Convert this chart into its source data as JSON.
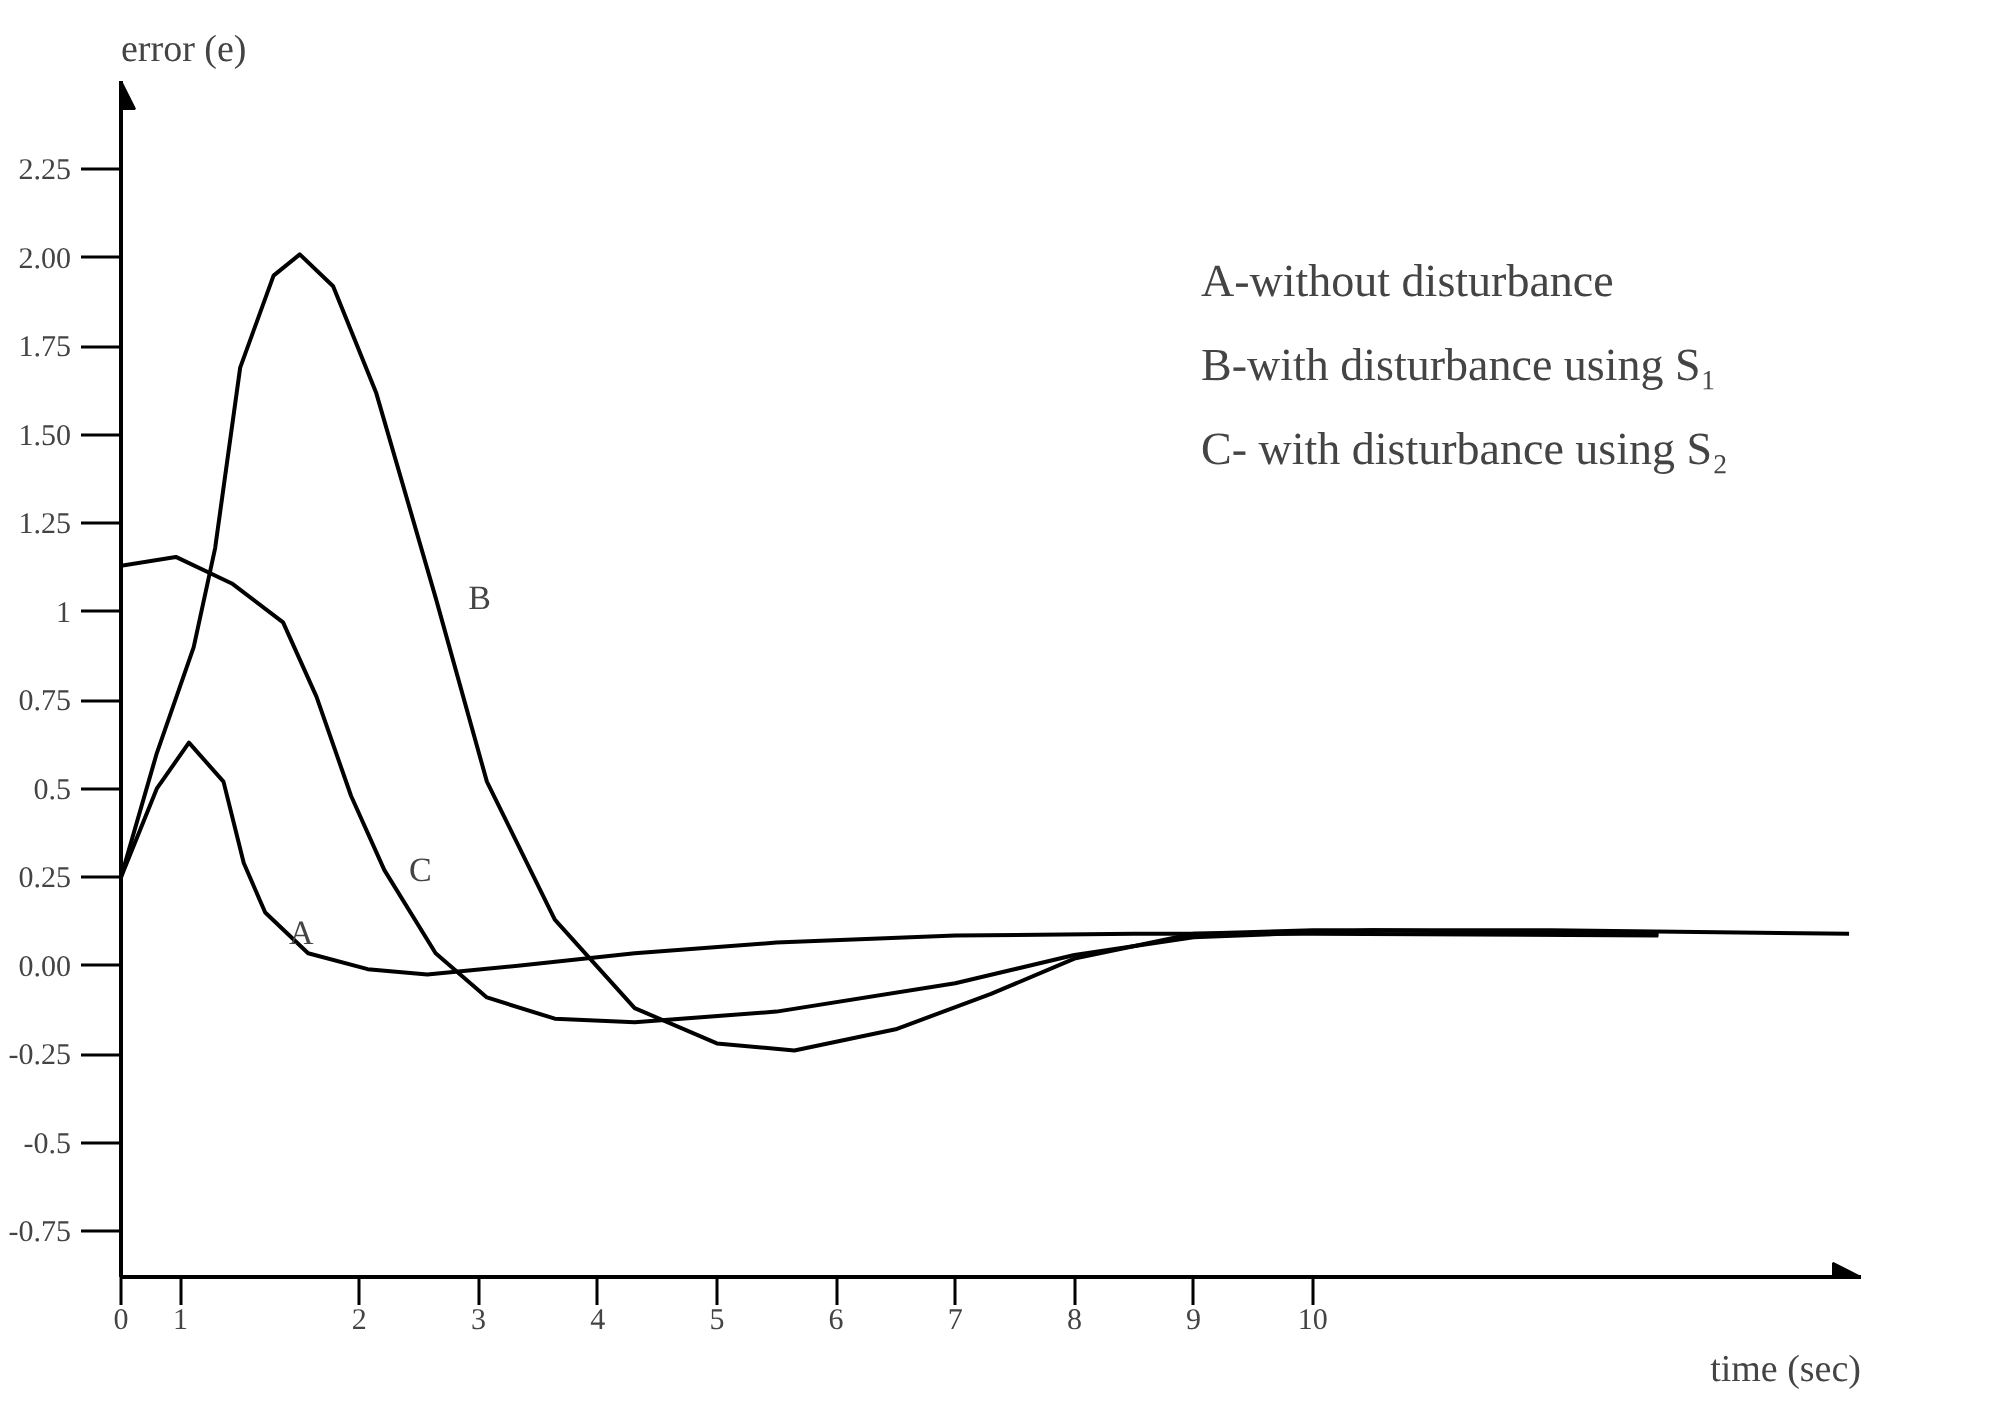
{
  "chart_data": {
    "type": "line",
    "xlabel": "time (sec)",
    "ylabel": "error (e)",
    "xlim": [
      0,
      14.6
    ],
    "ylim": [
      -0.88,
      2.5
    ],
    "xticks": [
      {
        "value": 0,
        "label": "0"
      },
      {
        "value": 0.5,
        "label": "1"
      },
      2,
      3,
      4,
      5,
      6,
      7,
      8,
      9,
      10
    ],
    "yticks": [
      {
        "value": -0.75,
        "label": "-0.75"
      },
      {
        "value": -0.5,
        "label": "-0.5"
      },
      {
        "value": -0.25,
        "label": "-0.25"
      },
      {
        "value": 0,
        "label": "0.00"
      },
      0.25,
      {
        "value": 0.5,
        "label": "0.5"
      },
      0.75,
      1,
      1.25,
      {
        "value": 1.5,
        "label": "1.50"
      },
      1.75,
      {
        "value": 2,
        "label": "2.00"
      },
      2.25
    ],
    "grid": false,
    "legend": false,
    "marker": "none",
    "line_style": "solid",
    "series": [
      {
        "name": "A",
        "color": "#000000",
        "x": [
          0,
          0.3,
          0.57,
          0.86,
          1.03,
          1.21,
          1.57,
          2.07,
          2.57,
          3.35,
          4.31,
          5.5,
          7.0,
          8.5,
          10.0,
          12.9
        ],
        "values": [
          0.25,
          0.5,
          0.63,
          0.52,
          0.29,
          0.15,
          0.035,
          -0.01,
          -0.025,
          0.0,
          0.035,
          0.065,
          0.085,
          0.09,
          0.09,
          0.085
        ]
      },
      {
        "name": "B",
        "color": "#000000",
        "x": [
          0,
          0.3,
          0.61,
          0.79,
          1.0,
          1.28,
          1.5,
          1.78,
          2.14,
          2.64,
          3.07,
          3.64,
          4.31,
          5.0,
          5.65,
          6.5,
          7.3,
          8.0,
          9.0,
          10.0,
          12.0,
          14.5
        ],
        "values": [
          0.25,
          0.6,
          0.9,
          1.18,
          1.69,
          1.95,
          2.01,
          1.92,
          1.62,
          1.04,
          0.52,
          0.13,
          -0.12,
          -0.22,
          -0.24,
          -0.18,
          -0.08,
          0.02,
          0.09,
          0.1,
          0.1,
          0.09
        ]
      },
      {
        "name": "C",
        "color": "#000000",
        "x": [
          0,
          0.46,
          0.93,
          1.36,
          1.64,
          1.93,
          2.21,
          2.64,
          3.07,
          3.64,
          4.31,
          5.5,
          7.0,
          8.0,
          9.0,
          10.5,
          12.9
        ],
        "values": [
          1.13,
          1.155,
          1.08,
          0.97,
          0.76,
          0.48,
          0.27,
          0.035,
          -0.09,
          -0.15,
          -0.16,
          -0.13,
          -0.05,
          0.03,
          0.08,
          0.1,
          0.09
        ]
      }
    ],
    "annotations": [
      "A-without disturbance",
      "B-with disturbance using S₁",
      "C- with disturbance using S₂"
    ]
  }
}
